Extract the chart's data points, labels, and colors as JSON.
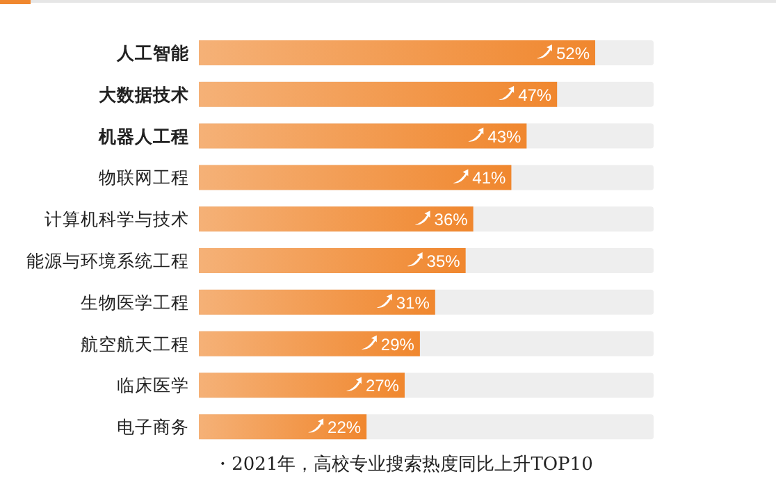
{
  "chart_data": {
    "type": "bar",
    "orientation": "horizontal",
    "categories": [
      "**人工智能**",
      "**大数据技术**",
      "**机器人工程**",
      "物联网工程",
      "计算机科学与技术",
      "能源与环境系统工程",
      "生物医学工程",
      "航空航天工程",
      "临床医学",
      "电子商务"
    ],
    "values": [
      52,
      47,
      43,
      41,
      36,
      35,
      31,
      29,
      27,
      22
    ],
    "value_labels": [
      "52%",
      "47%",
      "43%",
      "41%",
      "36%",
      "35%",
      "31%",
      "29%",
      "27%",
      "22%"
    ],
    "color": "#f0872e",
    "annotations": [
      "・2021年，高校专业搜索热度同比上升TOP10"
    ]
  }
}
